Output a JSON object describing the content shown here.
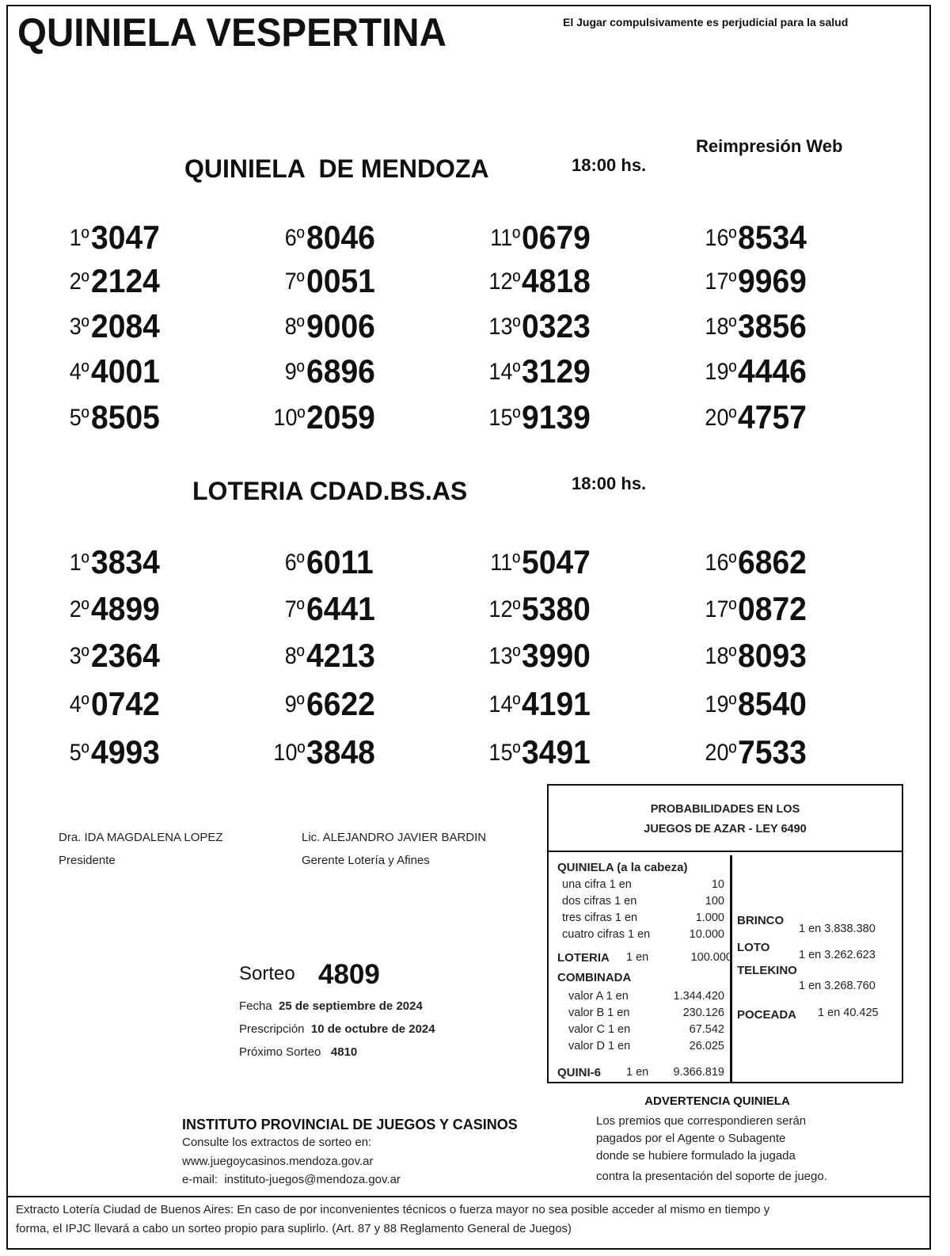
{
  "header": {
    "title": "QUINIELA VESPERTINA",
    "warning": "El Jugar compulsivamente es perjudicial para la salud",
    "reprint": "Reimpresión Web"
  },
  "sections": [
    {
      "title": "QUINIELA  DE MENDOZA",
      "time": "18:00 hs.",
      "results": [
        [
          "1º",
          "3047"
        ],
        [
          "2º",
          "2124"
        ],
        [
          "3º",
          "2084"
        ],
        [
          "4º",
          "4001"
        ],
        [
          "5º",
          "8505"
        ],
        [
          "6º",
          "8046"
        ],
        [
          "7º",
          "0051"
        ],
        [
          "8º",
          "9006"
        ],
        [
          "9º",
          "6896"
        ],
        [
          "10º",
          "2059"
        ],
        [
          "11º",
          "0679"
        ],
        [
          "12º",
          "4818"
        ],
        [
          "13º",
          "0323"
        ],
        [
          "14º",
          "3129"
        ],
        [
          "15º",
          "9139"
        ],
        [
          "16º",
          "8534"
        ],
        [
          "17º",
          "9969"
        ],
        [
          "18º",
          "3856"
        ],
        [
          "19º",
          "4446"
        ],
        [
          "20º",
          "4757"
        ]
      ]
    },
    {
      "title": "LOTERIA CDAD.BS.AS",
      "time": "18:00 hs.",
      "results": [
        [
          "1º",
          "3834"
        ],
        [
          "2º",
          "4899"
        ],
        [
          "3º",
          "2364"
        ],
        [
          "4º",
          "0742"
        ],
        [
          "5º",
          "4993"
        ],
        [
          "6º",
          "6011"
        ],
        [
          "7º",
          "6441"
        ],
        [
          "8º",
          "4213"
        ],
        [
          "9º",
          "6622"
        ],
        [
          "10º",
          "3848"
        ],
        [
          "11º",
          "5047"
        ],
        [
          "12º",
          "5380"
        ],
        [
          "13º",
          "3990"
        ],
        [
          "14º",
          "4191"
        ],
        [
          "15º",
          "3491"
        ],
        [
          "16º",
          "6862"
        ],
        [
          "17º",
          "0872"
        ],
        [
          "18º",
          "8093"
        ],
        [
          "19º",
          "8540"
        ],
        [
          "20º",
          "7533"
        ]
      ]
    }
  ],
  "signatures": [
    {
      "name": "Dra. IDA MAGDALENA LOPEZ",
      "role": "Presidente"
    },
    {
      "name": "Lic. ALEJANDRO JAVIER BARDIN",
      "role": "Gerente Lotería y Afines"
    }
  ],
  "draw": {
    "sorteo_label": "Sorteo",
    "sorteo": "4809",
    "fecha_label": "Fecha",
    "fecha": "25 de septiembre de 2024",
    "prescripcion_label": "Prescripción",
    "prescripcion": "10 de octubre de 2024",
    "proximo_label": "Próximo Sorteo",
    "proximo": "4810"
  },
  "institute": {
    "name": "INSTITUTO PROVINCIAL DE JUEGOS Y CASINOS",
    "line1": "Consulte los extractos de sorteo en:",
    "web": "www.juegoycasinos.mendoza.gov.ar",
    "email": "e-mail:  instituto-juegos@mendoza.gov.ar"
  },
  "prob": {
    "title1": "PROBABILIDADES EN LOS",
    "title2": "JUEGOS DE AZAR - LEY 6490",
    "quiniela": "QUINIELA (a la cabeza)",
    "q": [
      [
        "una cifra  1 en",
        "10"
      ],
      [
        "dos cifras 1 en",
        "100"
      ],
      [
        "tres cifras 1 en",
        "1.000"
      ],
      [
        "cuatro cifras 1 en",
        "10.000"
      ]
    ],
    "loteria": "LOTERIA",
    "loteria_en": "1 en",
    "loteria_v": "100.000",
    "combinada": "COMBINADA",
    "c": [
      [
        "valor A 1 en",
        "1.344.420"
      ],
      [
        "valor B 1 en",
        "230.126"
      ],
      [
        "valor C 1 en",
        "67.542"
      ],
      [
        "valor D 1 en",
        "26.025"
      ]
    ],
    "quini6": "QUINI-6",
    "quini6_en": "1 en",
    "quini6_v": "9.366.819",
    "brinco": "BRINCO",
    "brinco_v": "1 en 3.838.380",
    "loto": "LOTO",
    "loto_v": "1 en 3.262.623",
    "telekino": "TELEKINO",
    "telekino_v": "1 en 3.268.760",
    "poceada": "POCEADA",
    "poceada_v": "1 en 40.425"
  },
  "advertencia": {
    "title": "ADVERTENCIA QUINIELA",
    "lines": [
      "Los premios que correspondieren serán",
      "pagados por el Agente o Subagente",
      "donde se hubiere formulado la jugada",
      "contra la presentación del soporte de juego."
    ]
  },
  "footer": {
    "line1": "Extracto Lotería Ciudad de Buenos Aires: En caso de por inconvenientes técnicos o fuerza mayor no sea posible acceder al mismo en tiempo y",
    "line2": "forma, el IPJC llevará a cabo un sorteo propio para suplirlo. (Art. 87 y 88 Reglamento General de Juegos)"
  }
}
